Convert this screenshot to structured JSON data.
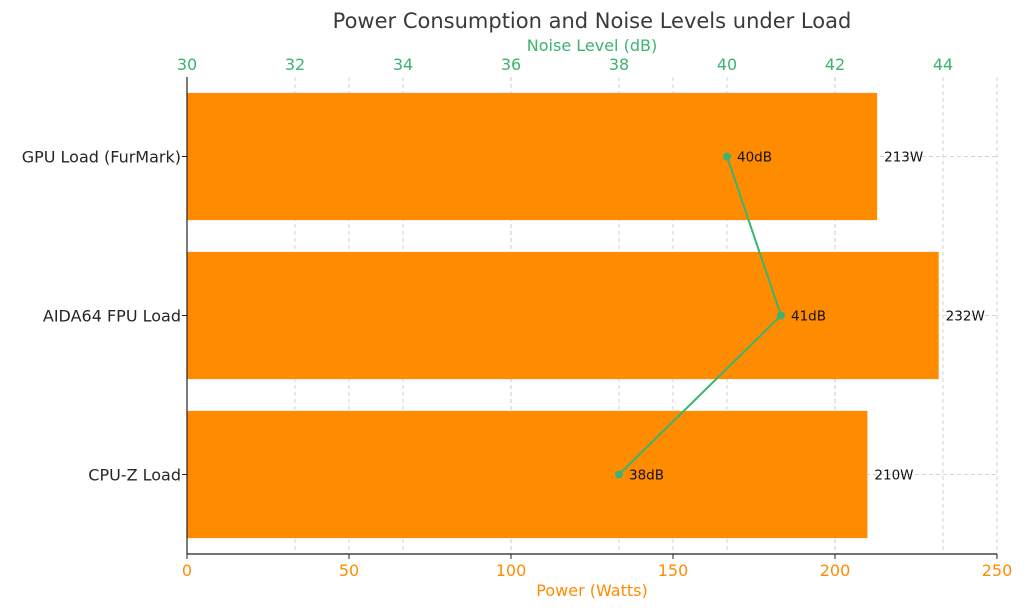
{
  "chart_data": {
    "type": "bar",
    "orientation": "horizontal",
    "title": "Power Consumption and Noise Levels under Load",
    "categories": [
      "CPU-Z Load",
      "AIDA64 FPU Load",
      "GPU Load (FurMark)"
    ],
    "series": [
      {
        "name": "Power (Watts)",
        "type": "bar",
        "axis": "bottom",
        "values": [
          210,
          232,
          213
        ],
        "data_labels": [
          "210W",
          "232W",
          "213W"
        ],
        "color": "#ff8c00"
      },
      {
        "name": "Noise Level (dB)",
        "type": "line",
        "axis": "top",
        "values": [
          38,
          41,
          40
        ],
        "data_labels": [
          "38dB",
          "41dB",
          "40dB"
        ],
        "color": "#3cb371"
      }
    ],
    "xlabel": "Power (Watts)",
    "xlim": [
      0,
      250
    ],
    "xticks": [
      0,
      50,
      100,
      150,
      200,
      250
    ],
    "x2label": "Noise Level (dB)",
    "x2lim": [
      30,
      45
    ],
    "x2ticks": [
      30,
      32,
      34,
      36,
      38,
      40,
      42,
      44
    ],
    "grid": true
  }
}
